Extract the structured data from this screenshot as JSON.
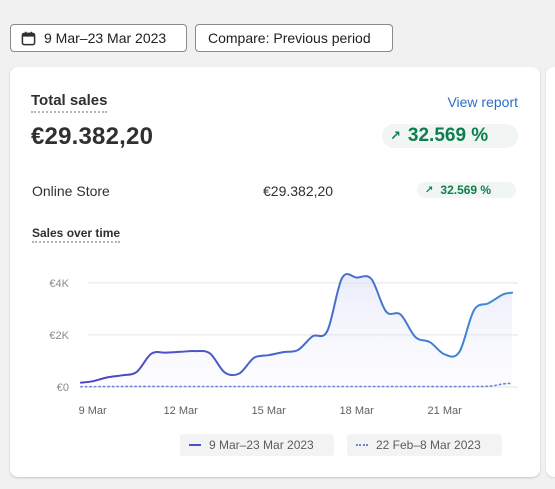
{
  "toolbar": {
    "date_range_label": "9 Mar–23 Mar 2023",
    "compare_label": "Compare: Previous period"
  },
  "card": {
    "title": "Total sales",
    "view_report_label": "View report",
    "total_value": "€29.382,20",
    "total_change": "32.569 %",
    "breakdown": {
      "channel": "Online Store",
      "value": "€29.382,20",
      "change": "32.569 %"
    },
    "chart_title": "Sales over time"
  },
  "colors": {
    "accent": "#4b52c8",
    "positive": "#0c7f4f",
    "link": "#2c6ecb"
  },
  "chart_data": {
    "type": "line",
    "ylim": [
      0,
      4800
    ],
    "yticks": [
      0,
      2000,
      4000
    ],
    "ytick_labels": [
      "€0",
      "€2K",
      "€4K"
    ],
    "x_range": [
      8.5,
      23.5
    ],
    "xticks": [
      9,
      12,
      15,
      18,
      21
    ],
    "xtick_labels": [
      "9 Mar",
      "12 Mar",
      "15 Mar",
      "18 Mar",
      "21 Mar"
    ],
    "series": [
      {
        "name": "9 Mar–23 Mar 2023",
        "style": "solid",
        "color": "#4b52c8",
        "points": [
          [
            8.6,
            170
          ],
          [
            9.0,
            220
          ],
          [
            9.5,
            370
          ],
          [
            10.0,
            450
          ],
          [
            10.5,
            580
          ],
          [
            11.0,
            1280
          ],
          [
            11.5,
            1320
          ],
          [
            12.0,
            1350
          ],
          [
            12.5,
            1380
          ],
          [
            13.0,
            1290
          ],
          [
            13.5,
            560
          ],
          [
            14.0,
            520
          ],
          [
            14.5,
            1120
          ],
          [
            15.0,
            1220
          ],
          [
            15.5,
            1340
          ],
          [
            16.0,
            1420
          ],
          [
            16.5,
            1950
          ],
          [
            17.0,
            2150
          ],
          [
            17.5,
            4180
          ],
          [
            18.0,
            4200
          ],
          [
            18.5,
            4150
          ],
          [
            19.0,
            2900
          ],
          [
            19.5,
            2780
          ],
          [
            20.0,
            1920
          ],
          [
            20.5,
            1720
          ],
          [
            21.0,
            1250
          ],
          [
            21.5,
            1340
          ],
          [
            22.0,
            2950
          ],
          [
            22.5,
            3220
          ],
          [
            23.0,
            3560
          ],
          [
            23.3,
            3620
          ]
        ]
      },
      {
        "name": "22 Feb–8 Mar 2023",
        "style": "dotted",
        "color": "#6c85d6",
        "points": [
          [
            8.6,
            10
          ],
          [
            10.0,
            20
          ],
          [
            12.0,
            20
          ],
          [
            14.0,
            20
          ],
          [
            16.0,
            20
          ],
          [
            18.0,
            20
          ],
          [
            20.0,
            20
          ],
          [
            22.0,
            20
          ],
          [
            22.6,
            40
          ],
          [
            23.0,
            120
          ],
          [
            23.3,
            140
          ]
        ]
      }
    ]
  }
}
